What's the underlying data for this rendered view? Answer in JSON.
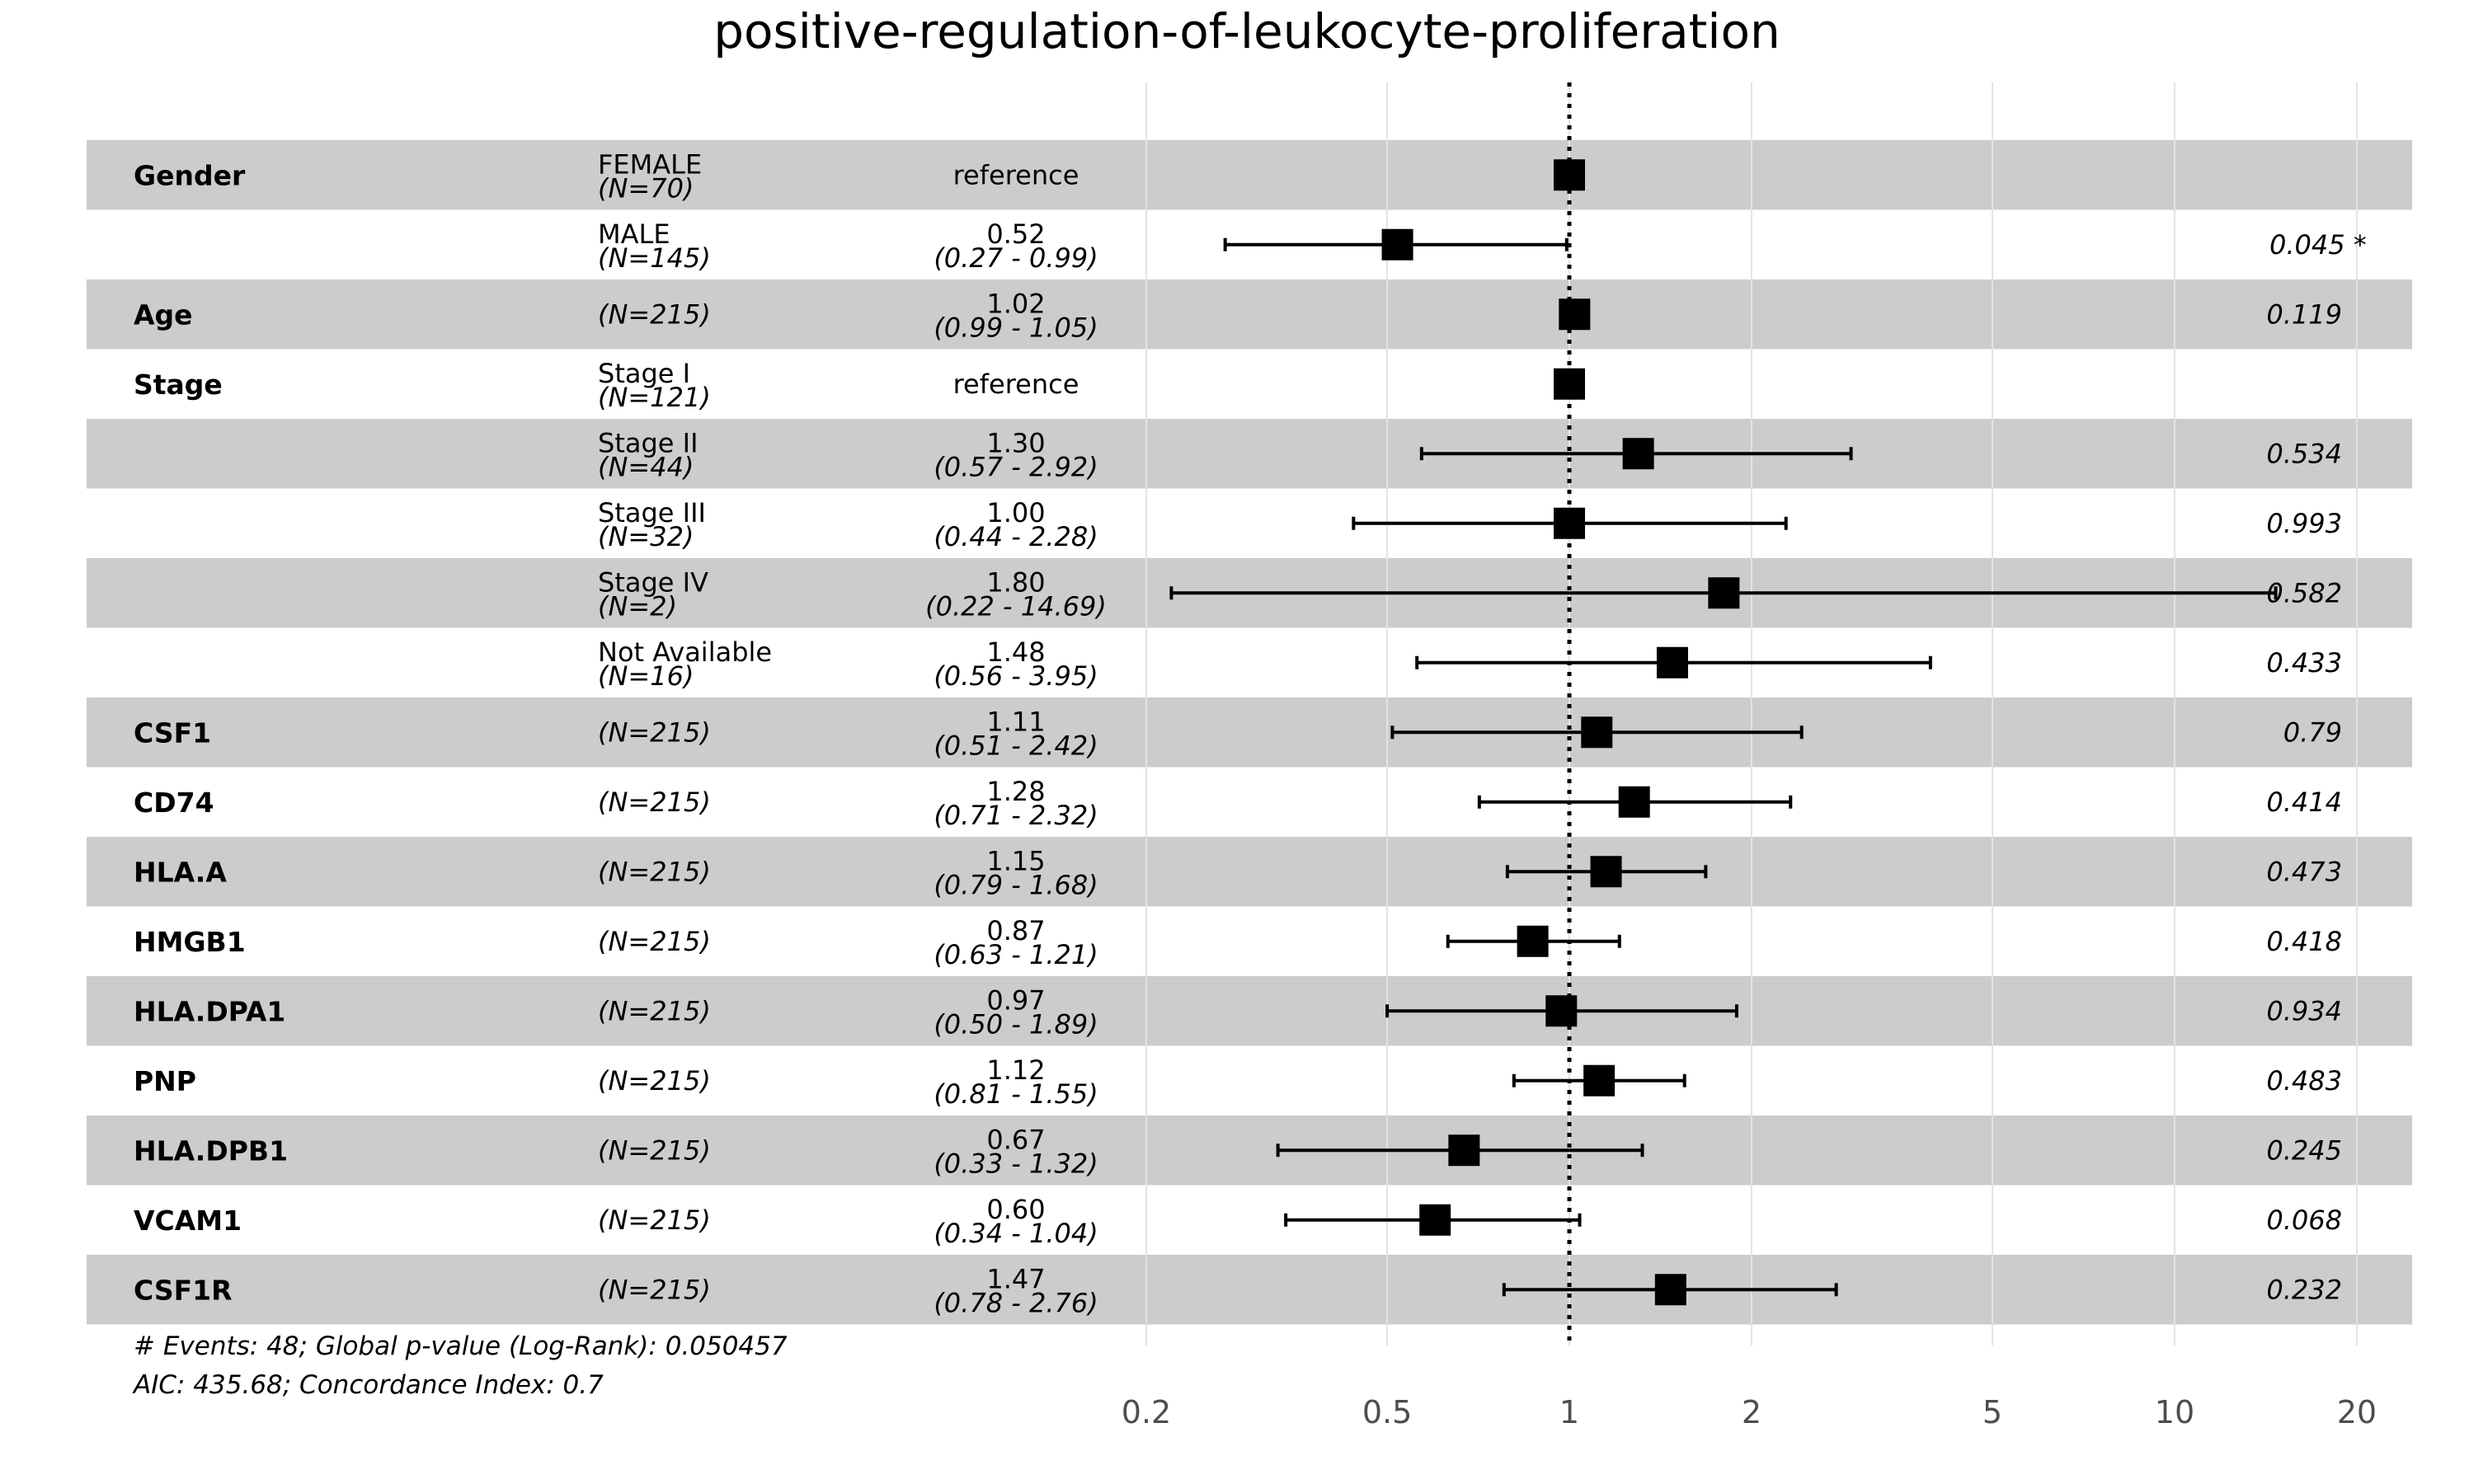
{
  "chart_data": {
    "type": "forest",
    "title": "positive-regulation-of-leukocyte-proliferation",
    "x_scale": "log",
    "xlim": [
      0.2,
      24
    ],
    "x_ticks": [
      0.2,
      0.5,
      1,
      2,
      5,
      10,
      20
    ],
    "x_tick_labels": [
      "0.2",
      "0.5",
      "1",
      "2",
      "5",
      "10",
      "20"
    ],
    "reference_line": 1,
    "row_striping": "alternating grey / white",
    "rows": [
      {
        "variable": "Gender",
        "level": "FEMALE",
        "n": "(N=70)",
        "estimate_text": "reference",
        "ci_text": "",
        "p_text": "",
        "hr": 1.0,
        "lower": null,
        "upper": null
      },
      {
        "variable": "",
        "level": "MALE",
        "n": "(N=145)",
        "estimate_text": "0.52",
        "ci_text": "(0.27 -  0.99)",
        "p_text": "0.045 *",
        "hr": 0.52,
        "lower": 0.27,
        "upper": 0.99
      },
      {
        "variable": "Age",
        "level": "",
        "n": "(N=215)",
        "estimate_text": "1.02",
        "ci_text": "(0.99 -  1.05)",
        "p_text": "0.119",
        "hr": 1.02,
        "lower": 0.99,
        "upper": 1.05
      },
      {
        "variable": "Stage",
        "level": "Stage I",
        "n": "(N=121)",
        "estimate_text": "reference",
        "ci_text": "",
        "p_text": "",
        "hr": 1.0,
        "lower": null,
        "upper": null
      },
      {
        "variable": "",
        "level": "Stage II",
        "n": "(N=44)",
        "estimate_text": "1.30",
        "ci_text": "(0.57 -  2.92)",
        "p_text": "0.534",
        "hr": 1.3,
        "lower": 0.57,
        "upper": 2.92
      },
      {
        "variable": "",
        "level": "Stage III",
        "n": "(N=32)",
        "estimate_text": "1.00",
        "ci_text": "(0.44 -  2.28)",
        "p_text": "0.993",
        "hr": 1.0,
        "lower": 0.44,
        "upper": 2.28
      },
      {
        "variable": "",
        "level": "Stage IV",
        "n": "(N=2)",
        "estimate_text": "1.80",
        "ci_text": "(0.22 - 14.69)",
        "p_text": "0.582",
        "hr": 1.8,
        "lower": 0.22,
        "upper": 14.69
      },
      {
        "variable": "",
        "level": "Not Available",
        "n": "(N=16)",
        "estimate_text": "1.48",
        "ci_text": "(0.56 -  3.95)",
        "p_text": "0.433",
        "hr": 1.48,
        "lower": 0.56,
        "upper": 3.95
      },
      {
        "variable": "CSF1",
        "level": "",
        "n": "(N=215)",
        "estimate_text": "1.11",
        "ci_text": "(0.51 -  2.42)",
        "p_text": "0.79",
        "hr": 1.11,
        "lower": 0.51,
        "upper": 2.42
      },
      {
        "variable": "CD74",
        "level": "",
        "n": "(N=215)",
        "estimate_text": "1.28",
        "ci_text": "(0.71 -  2.32)",
        "p_text": "0.414",
        "hr": 1.28,
        "lower": 0.71,
        "upper": 2.32
      },
      {
        "variable": "HLA.A",
        "level": "",
        "n": "(N=215)",
        "estimate_text": "1.15",
        "ci_text": "(0.79 -  1.68)",
        "p_text": "0.473",
        "hr": 1.15,
        "lower": 0.79,
        "upper": 1.68
      },
      {
        "variable": "HMGB1",
        "level": "",
        "n": "(N=215)",
        "estimate_text": "0.87",
        "ci_text": "(0.63 -  1.21)",
        "p_text": "0.418",
        "hr": 0.87,
        "lower": 0.63,
        "upper": 1.21
      },
      {
        "variable": "HLA.DPA1",
        "level": "",
        "n": "(N=215)",
        "estimate_text": "0.97",
        "ci_text": "(0.50 -  1.89)",
        "p_text": "0.934",
        "hr": 0.97,
        "lower": 0.5,
        "upper": 1.89
      },
      {
        "variable": "PNP",
        "level": "",
        "n": "(N=215)",
        "estimate_text": "1.12",
        "ci_text": "(0.81 -  1.55)",
        "p_text": "0.483",
        "hr": 1.12,
        "lower": 0.81,
        "upper": 1.55
      },
      {
        "variable": "HLA.DPB1",
        "level": "",
        "n": "(N=215)",
        "estimate_text": "0.67",
        "ci_text": "(0.33 -  1.32)",
        "p_text": "0.245",
        "hr": 0.67,
        "lower": 0.33,
        "upper": 1.32
      },
      {
        "variable": "VCAM1",
        "level": "",
        "n": "(N=215)",
        "estimate_text": "0.60",
        "ci_text": "(0.34 -  1.04)",
        "p_text": "0.068",
        "hr": 0.6,
        "lower": 0.34,
        "upper": 1.04
      },
      {
        "variable": "CSF1R",
        "level": "",
        "n": "(N=215)",
        "estimate_text": "1.47",
        "ci_text": "(0.78 -  2.76)",
        "p_text": "0.232",
        "hr": 1.47,
        "lower": 0.78,
        "upper": 2.76
      }
    ],
    "footnotes": [
      "# Events: 48; Global p-value (Log-Rank): 0.050457",
      "AIC: 435.68; Concordance Index: 0.7"
    ],
    "colors": {
      "stripe": "#cccccc",
      "gridline": "#e3e3e3",
      "marker": "#000000",
      "tick_text": "#4d4d4d"
    }
  }
}
